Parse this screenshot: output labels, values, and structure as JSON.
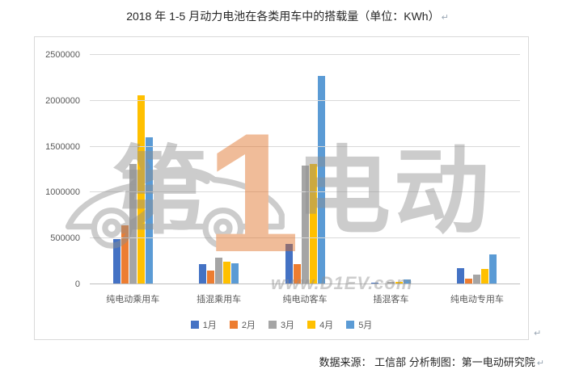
{
  "title": {
    "text": "2018 年 1-5 月动力电池在各类用车中的搭载量（单位：KWh）"
  },
  "paragraph_marks": {
    "title": "↵",
    "chart": "↵",
    "source": "↵"
  },
  "source": {
    "text": "数据来源： 工信部 分析制图：第一电动研究院"
  },
  "watermark": {
    "brand_left": "第",
    "brand_number": "1",
    "brand_right": "电动",
    "url": "www.D1EV.com",
    "car_icon": "car-outline-icon"
  },
  "colors": {
    "jan": "#4472C4",
    "feb": "#ED7D31",
    "mar": "#A5A5A5",
    "apr": "#FFC000",
    "may": "#5B9BD5",
    "gridline": "#D9D9D9",
    "axis_text": "#595959",
    "watermark_gray": "#8F8F8F",
    "watermark_orange": "#E06C1E"
  },
  "chart_data": {
    "type": "bar",
    "title": "2018 年 1-5 月动力电池在各类用车中的搭载量（单位：KWh）",
    "xlabel": "",
    "ylabel": "",
    "categories": [
      "纯电动乘用车",
      "插混乘用车",
      "纯电动客车",
      "插混客车",
      "纯电动专用车"
    ],
    "series": [
      {
        "name": "1月",
        "color": "#4472C4",
        "values": [
          490000,
          220000,
          440000,
          15000,
          180000
        ]
      },
      {
        "name": "2月",
        "color": "#ED7D31",
        "values": [
          640000,
          150000,
          220000,
          10000,
          60000
        ]
      },
      {
        "name": "3月",
        "color": "#A5A5A5",
        "values": [
          1310000,
          290000,
          1290000,
          25000,
          105000
        ]
      },
      {
        "name": "4月",
        "color": "#FFC000",
        "values": [
          2060000,
          250000,
          1310000,
          30000,
          170000
        ]
      },
      {
        "name": "5月",
        "color": "#5B9BD5",
        "values": [
          1600000,
          230000,
          2270000,
          55000,
          330000
        ]
      }
    ],
    "ylim": [
      0,
      2500000
    ],
    "ytick_step": 500000,
    "ytick_labels": [
      "0",
      "500000",
      "1000000",
      "1500000",
      "2000000",
      "2500000"
    ],
    "grid": true,
    "legend_position": "bottom"
  }
}
